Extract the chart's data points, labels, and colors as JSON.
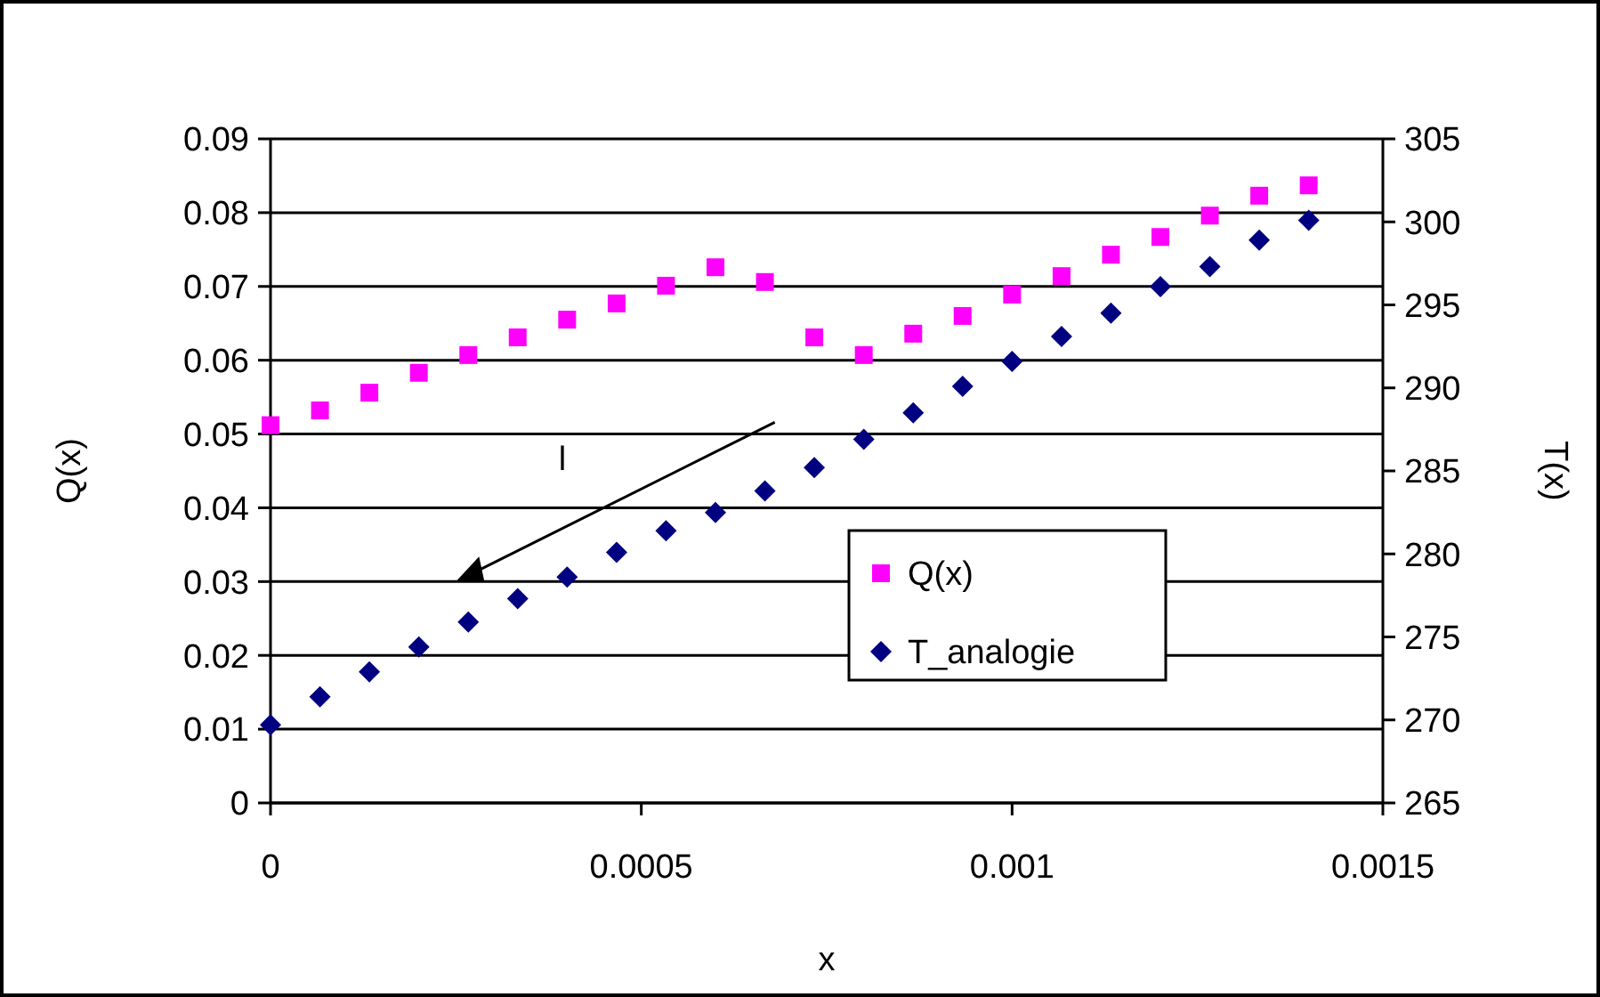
{
  "chart_data": {
    "type": "scatter",
    "xlabel": "x",
    "ylabel": "Q(x)",
    "y2label": "T(x)",
    "x": [
      0,
      6.67e-05,
      0.0001333,
      0.0002,
      0.0002667,
      0.0003333,
      0.0004,
      0.0004667,
      0.0005333,
      0.0006,
      0.0006667,
      0.0007333,
      0.0008,
      0.0008667,
      0.0009333,
      0.001,
      0.0010667,
      0.0011333,
      0.0012,
      0.0012667,
      0.0013333,
      0.0014
    ],
    "series": [
      {
        "name": "Q(x)",
        "color": "#ff00ff",
        "marker": "square",
        "values": [
          0.0512,
          0.0532,
          0.0556,
          0.0583,
          0.0607,
          0.0631,
          0.0655,
          0.0677,
          0.0701,
          0.0726,
          0.0706,
          0.0631,
          0.0607,
          0.0636,
          0.066,
          0.0689,
          0.0714,
          0.0743,
          0.0767,
          0.0796,
          0.0823,
          0.0837
        ]
      },
      {
        "name": "T_analogie",
        "color": "#000080",
        "marker": "diamond",
        "axis": "y2",
        "values": [
          269.7,
          271.4,
          272.9,
          274.4,
          275.9,
          277.3,
          278.6,
          280.1,
          281.4,
          282.5,
          283.8,
          285.2,
          286.9,
          288.5,
          290.1,
          291.6,
          293.1,
          294.5,
          296.1,
          297.3,
          298.9,
          300.1
        ]
      }
    ],
    "xlim": [
      0,
      0.0015
    ],
    "xticks": [
      0,
      0.0005,
      0.001,
      0.0015
    ],
    "ylim": [
      0,
      0.09
    ],
    "yticks": [
      0,
      0.01,
      0.02,
      0.03,
      0.04,
      0.05,
      0.06,
      0.07,
      0.08,
      0.09
    ],
    "y2lim": [
      265,
      305
    ],
    "y2ticks": [
      265,
      270,
      275,
      280,
      285,
      290,
      295,
      300,
      305
    ],
    "annotations": [
      "l"
    ],
    "grid": "y",
    "legend": "bottom right"
  }
}
